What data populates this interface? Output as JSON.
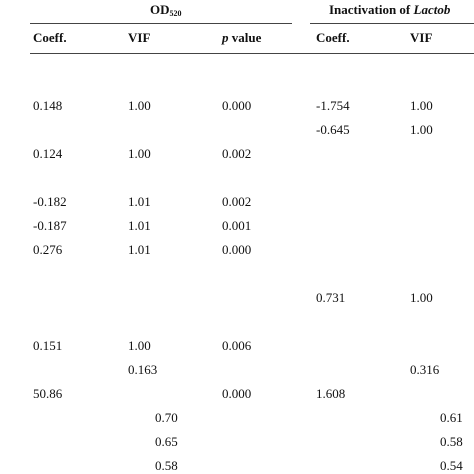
{
  "header": {
    "od_label": "OD",
    "od_subscript": "520",
    "inactivation_label": "Inactivation of ",
    "inactivation_italic": "Lactob",
    "columns": [
      "Coeff.",
      "VIF",
      "value",
      "Coeff.",
      "VIF"
    ],
    "p_italic": "p"
  },
  "table": {
    "rows": [
      [
        "0.148",
        "1.00",
        "0.000",
        "-1.754",
        "1.00"
      ],
      [
        null,
        null,
        null,
        "-0.645",
        "1.00"
      ],
      [
        "0.124",
        "1.00",
        "0.002",
        null,
        null
      ],
      [
        "-0.182",
        "1.01",
        "0.002",
        null,
        null
      ],
      [
        "-0.187",
        "1.01",
        "0.001",
        null,
        null
      ],
      [
        "0.276",
        "1.01",
        "0.000",
        null,
        null
      ],
      [
        null,
        null,
        null,
        "0.731",
        "1.00"
      ],
      [
        "0.151",
        "1.00",
        "0.006",
        null,
        null
      ],
      [
        null,
        "0.163",
        null,
        null,
        "0.316"
      ],
      [
        "50.86",
        null,
        "0.000",
        "1.608",
        null
      ]
    ],
    "summary_rows": [
      [
        "0.70",
        "0.61"
      ],
      [
        "0.65",
        "0.58"
      ],
      [
        "0.58",
        "0.54"
      ]
    ]
  }
}
